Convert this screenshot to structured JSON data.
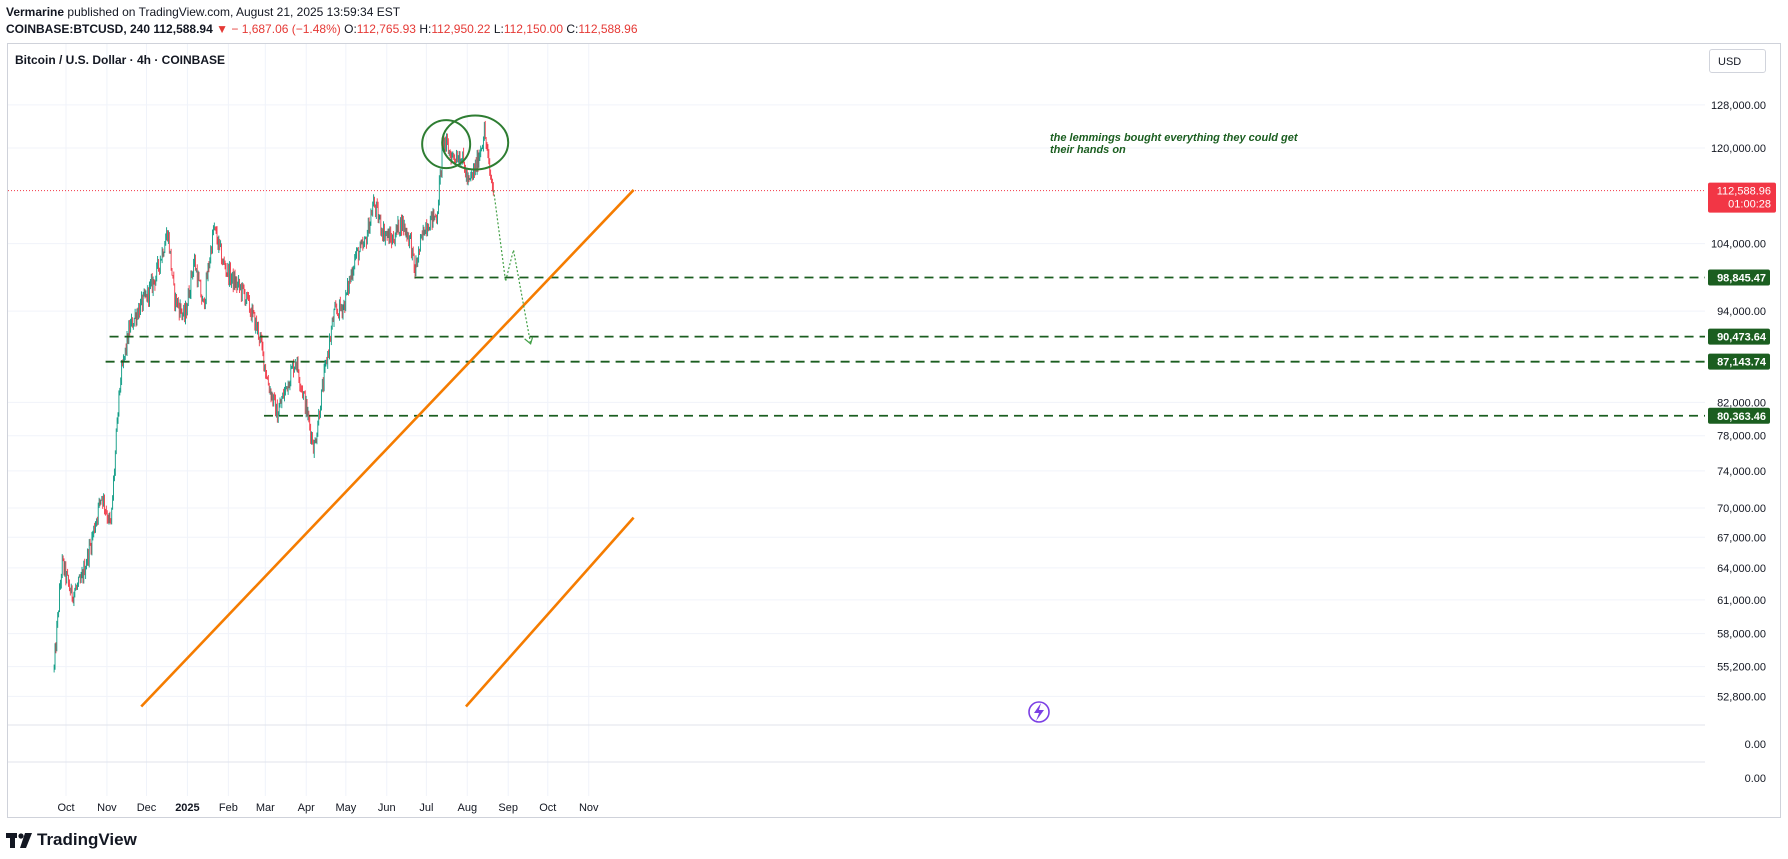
{
  "header": {
    "author": "Vermarine",
    "published": "published on TradingView.com, August 21, 2025 13:59:34 EST",
    "symbol": "COINBASE:BTCUSD, 240",
    "last": "112,588.94",
    "change": "− 1,687.06 (−1.48%)",
    "o_label": "O:",
    "o": "112,765.93",
    "h_label": "H:",
    "h": "112,950.22",
    "l_label": "L:",
    "l": "112,150.00",
    "c_label": "C:",
    "c": "112,588.96"
  },
  "chart": {
    "title": "Bitcoin / U.S. Dollar · 4h · COINBASE",
    "currency": "USD",
    "annotation_line1": "the lemmings bought everything they could get",
    "annotation_line2": "their hands on",
    "logo": "TradingView"
  },
  "colors": {
    "up": "#089981",
    "down": "#f23645",
    "orange": "#f57c00",
    "green_level": "#1b5e20",
    "price_tag": "#f23645",
    "grid": "#f0f3fa",
    "axis_text": "#131722"
  },
  "chart_data": {
    "type": "candlestick",
    "series": "BTCUSD 4h",
    "y_ticks": [
      "128,000.00",
      "120,000.00",
      "104,000.00",
      "94,000.00",
      "82,000.00",
      "78,000.00",
      "74,000.00",
      "70,000.00",
      "67,000.00",
      "64,000.00",
      "61,000.00",
      "58,000.00",
      "55,200.00",
      "52,800.00"
    ],
    "lower_pane_ticks": [
      "0.00",
      "0.00"
    ],
    "x_ticks": [
      "Oct",
      "Nov",
      "Dec",
      "2025",
      "Feb",
      "Mar",
      "Apr",
      "May",
      "Jun",
      "Jul",
      "Aug",
      "Sep",
      "Oct",
      "Nov"
    ],
    "current_price": {
      "value": 112588.96,
      "label": "112,588.96",
      "countdown": "01:00:28"
    },
    "levels": [
      {
        "value": 98845.47,
        "label": "98,845.47"
      },
      {
        "value": 90473.64,
        "label": "90,473.64"
      },
      {
        "value": 87143.74,
        "label": "87,143.74"
      },
      {
        "value": 80363.46,
        "label": "80,363.46"
      }
    ],
    "path_closes": [
      [
        "2024-09-22",
        55000
      ],
      [
        "2024-09-28",
        64500
      ],
      [
        "2024-10-05",
        61500
      ],
      [
        "2024-10-12",
        62500
      ],
      [
        "2024-10-20",
        66500
      ],
      [
        "2024-10-28",
        71500
      ],
      [
        "2024-11-04",
        68000
      ],
      [
        "2024-11-11",
        84500
      ],
      [
        "2024-11-18",
        91500
      ],
      [
        "2024-11-24",
        94000
      ],
      [
        "2024-12-01",
        96000
      ],
      [
        "2024-12-08",
        99000
      ],
      [
        "2024-12-17",
        106000
      ],
      [
        "2024-12-22",
        96000
      ],
      [
        "2024-12-30",
        93000
      ],
      [
        "2025-01-06",
        101500
      ],
      [
        "2025-01-13",
        94500
      ],
      [
        "2025-01-21",
        106500
      ],
      [
        "2025-01-28",
        101000
      ],
      [
        "2025-02-04",
        98500
      ],
      [
        "2025-02-13",
        96500
      ],
      [
        "2025-02-24",
        91000
      ],
      [
        "2025-03-03",
        84500
      ],
      [
        "2025-03-10",
        80500
      ],
      [
        "2025-03-17",
        84000
      ],
      [
        "2025-03-24",
        87500
      ],
      [
        "2025-03-31",
        82000
      ],
      [
        "2025-04-07",
        76500
      ],
      [
        "2025-04-14",
        84500
      ],
      [
        "2025-04-22",
        93500
      ],
      [
        "2025-04-30",
        95000
      ],
      [
        "2025-05-08",
        102000
      ],
      [
        "2025-05-15",
        103500
      ],
      [
        "2025-05-22",
        110500
      ],
      [
        "2025-05-29",
        106000
      ],
      [
        "2025-06-05",
        104500
      ],
      [
        "2025-06-12",
        107500
      ],
      [
        "2025-06-19",
        104500
      ],
      [
        "2025-06-22",
        99500
      ],
      [
        "2025-06-30",
        107000
      ],
      [
        "2025-07-09",
        108500
      ],
      [
        "2025-07-14",
        121500
      ],
      [
        "2025-07-20",
        118500
      ],
      [
        "2025-07-27",
        119000
      ],
      [
        "2025-08-02",
        113500
      ],
      [
        "2025-08-08",
        117000
      ],
      [
        "2025-08-14",
        123000
      ],
      [
        "2025-08-18",
        115500
      ],
      [
        "2025-08-21",
        112589
      ]
    ],
    "projection": [
      [
        "2025-08-21",
        112589
      ],
      [
        "2025-08-30",
        98300
      ],
      [
        "2025-09-05",
        103000
      ],
      [
        "2025-09-18",
        89500
      ]
    ],
    "trendlines": [
      {
        "from": [
          "2024-11-27",
          52000
        ],
        "to": [
          "2025-12-05",
          112700
        ]
      },
      {
        "from": [
          "2025-07-31",
          52000
        ],
        "to": [
          "2025-12-05",
          69000
        ]
      }
    ],
    "circles": [
      {
        "center": [
          "2025-07-16",
          120700
        ]
      },
      {
        "center": [
          "2025-08-07",
          121000
        ]
      }
    ]
  }
}
